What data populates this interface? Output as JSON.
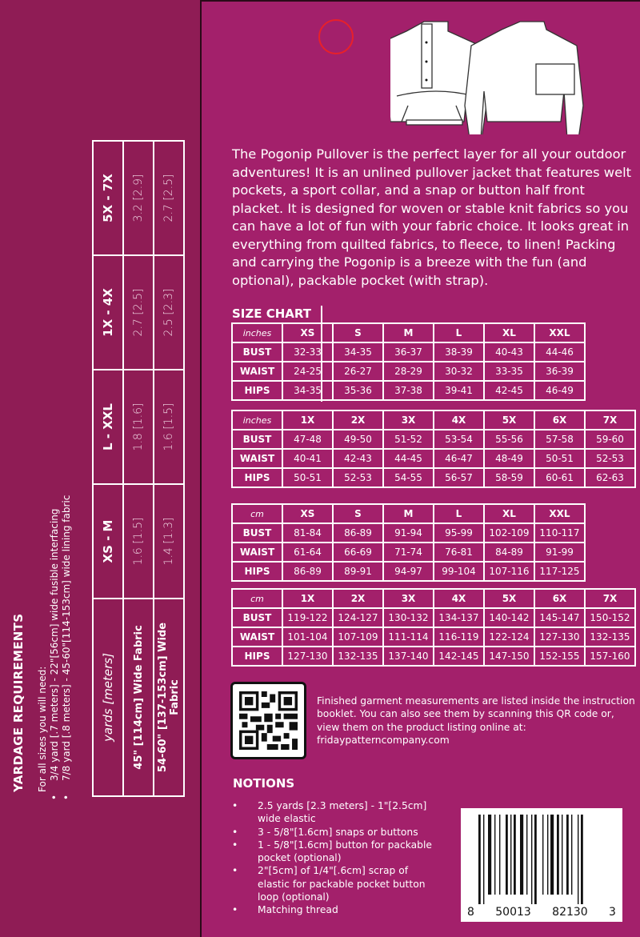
{
  "colors": {
    "left_panel": "#8f1c55",
    "right_panel": "#a3206b",
    "text": "#ffffff"
  },
  "yardage": {
    "title": "YARDAGE REQUIREMENTS",
    "intro": "For all sizes you will need:",
    "bullets": [
      "3/4 yard [.7 meters] - 22\"[56cm] wide fusible interfacing",
      "7/8 yard [.8 meters] - 45-60\"[114-153cm] wide lining fabric"
    ],
    "table": {
      "header": [
        "yards [meters]",
        "XS - M",
        "L - XXL",
        "1X - 4X",
        "5X - 7X"
      ],
      "rows": [
        [
          "45\" [114cm] Wide Fabric",
          "1.6 [1.5]",
          "1.8 [1.6]",
          "2.7 [2.5]",
          "3.2 [2.9]"
        ],
        [
          "54-60\" [137-153cm] Wide Fabric",
          "1.4 [1.3]",
          "1.6 [1.5]",
          "2.5 [2.3]",
          "2.7 [2.5]"
        ]
      ]
    }
  },
  "description": "The Pogonip Pullover is the perfect layer for all your outdoor adventures! It is an unlined pullover jacket that features welt pockets, a sport collar, and a snap or button half front placket. It is designed for woven or stable knit fabrics so you can have a lot of fun with your fabric choice. It looks great in everything from quilted fabrics, to fleece, to linen! Packing and carrying the Pogonip is a breeze with the fun (and optional), packable pocket (with strap).",
  "size_chart": {
    "title": "SIZE CHART",
    "tables": [
      {
        "header": [
          "inches",
          "XS",
          "S",
          "M",
          "L",
          "XL",
          "XXL"
        ],
        "rows": [
          [
            "BUST",
            "32-33",
            "34-35",
            "36-37",
            "38-39",
            "40-43",
            "44-46"
          ],
          [
            "WAIST",
            "24-25",
            "26-27",
            "28-29",
            "30-32",
            "33-35",
            "36-39"
          ],
          [
            "HIPS",
            "34-35",
            "35-36",
            "37-38",
            "39-41",
            "42-45",
            "46-49"
          ]
        ]
      },
      {
        "header": [
          "inches",
          "1X",
          "2X",
          "3X",
          "4X",
          "5X",
          "6X",
          "7X"
        ],
        "rows": [
          [
            "BUST",
            "47-48",
            "49-50",
            "51-52",
            "53-54",
            "55-56",
            "57-58",
            "59-60"
          ],
          [
            "WAIST",
            "40-41",
            "42-43",
            "44-45",
            "46-47",
            "48-49",
            "50-51",
            "52-53"
          ],
          [
            "HIPS",
            "50-51",
            "52-53",
            "54-55",
            "56-57",
            "58-59",
            "60-61",
            "62-63"
          ]
        ]
      },
      {
        "header": [
          "cm",
          "XS",
          "S",
          "M",
          "L",
          "XL",
          "XXL"
        ],
        "rows": [
          [
            "BUST",
            "81-84",
            "86-89",
            "91-94",
            "95-99",
            "102-109",
            "110-117"
          ],
          [
            "WAIST",
            "61-64",
            "66-69",
            "71-74",
            "76-81",
            "84-89",
            "91-99"
          ],
          [
            "HIPS",
            "86-89",
            "89-91",
            "94-97",
            "99-104",
            "107-116",
            "117-125"
          ]
        ]
      },
      {
        "header": [
          "cm",
          "1X",
          "2X",
          "3X",
          "4X",
          "5X",
          "6X",
          "7X"
        ],
        "rows": [
          [
            "BUST",
            "119-122",
            "124-127",
            "130-132",
            "134-137",
            "140-142",
            "145-147",
            "150-152"
          ],
          [
            "WAIST",
            "101-104",
            "107-109",
            "111-114",
            "116-119",
            "122-124",
            "127-130",
            "132-135"
          ],
          [
            "HIPS",
            "127-130",
            "132-135",
            "137-140",
            "142-145",
            "147-150",
            "152-155",
            "157-160"
          ]
        ]
      }
    ]
  },
  "qr_text": "Finished garment measurements are listed inside the instruction booklet. You can also see them by scanning this QR code or, view them on the product listing online at: fridaypatterncompany.com",
  "notions": {
    "title": "NOTIONS",
    "items": [
      "2.5 yards [2.3 meters] - 1\"[2.5cm] wide elastic",
      "3 - 5/8\"[1.6cm] snaps or buttons",
      "1 - 5/8\"[1.6cm] button for packable pocket (optional)",
      "2\"[5cm] of 1/4\"[.6cm] scrap of elastic for packable pocket button loop (optional)",
      "Matching thread"
    ]
  },
  "barcode": {
    "digits": [
      "8",
      "50013",
      "82130",
      "3"
    ]
  }
}
